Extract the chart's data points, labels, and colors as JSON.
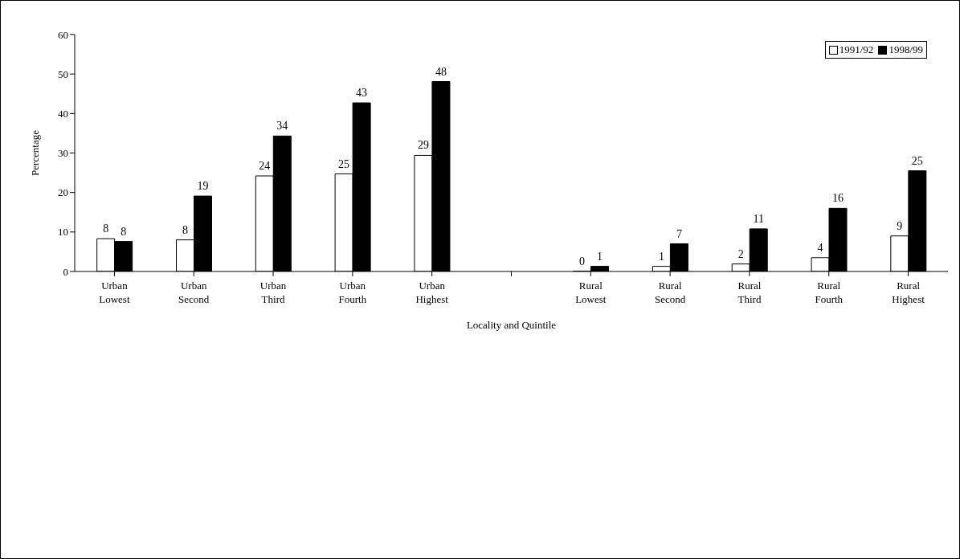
{
  "chart_data": {
    "type": "bar",
    "xlabel": "Locality and Quintile",
    "ylabel": "Percentage",
    "categories": [
      "Urban\nLowest",
      "Urban\nSecond",
      "Urban\nThird",
      "Urban\nFourth",
      "Urban\nHighest",
      null,
      "Rural\nLowest",
      "Rural\nSecond",
      "Rural\nThird",
      "Rural\nFourth",
      "Rural\nHighest"
    ],
    "series": [
      {
        "name": "1991/92",
        "color": "#ffffff",
        "values": [
          8.3,
          8.0,
          24.2,
          24.7,
          29.4,
          null,
          0.1,
          1.3,
          1.9,
          3.5,
          9.0
        ],
        "value_labels": [
          "8",
          "8",
          "24",
          "25",
          "29",
          null,
          "0",
          "1",
          "2",
          "4",
          "9"
        ]
      },
      {
        "name": "1998/99",
        "color": "#000000",
        "values": [
          7.6,
          19.1,
          34.3,
          42.7,
          48.1,
          null,
          1.3,
          7.0,
          10.8,
          16.0,
          25.5
        ],
        "value_labels": [
          "8",
          "19",
          "34",
          "43",
          "48",
          null,
          "1",
          "7",
          "11",
          "16",
          "25"
        ]
      }
    ],
    "ylim": [
      0,
      60
    ],
    "yticks": [
      0,
      10,
      20,
      30,
      40,
      50,
      60
    ],
    "grid": false,
    "legend": "top right"
  }
}
